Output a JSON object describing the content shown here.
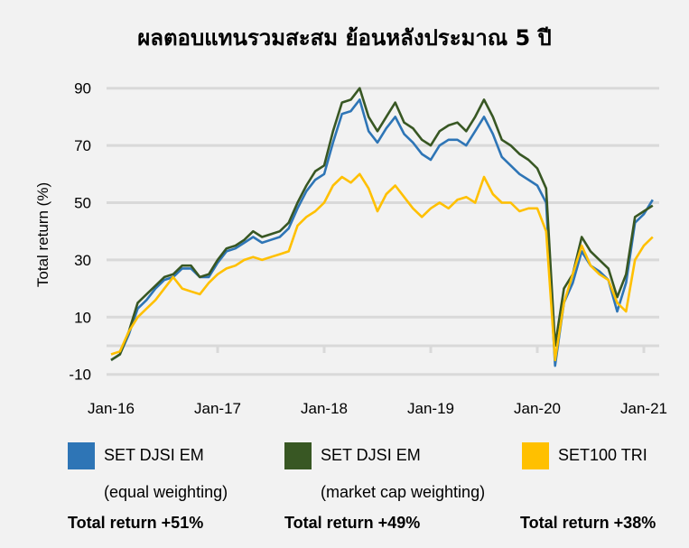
{
  "chart_data": {
    "type": "line",
    "title": "ผลตอบแทนรวมสะสม ย้อนหลังประมาณ 5 ปี",
    "ylabel": "Total return (%)",
    "xlabel": "",
    "ylim": [
      -10,
      90
    ],
    "yticks": [
      "90",
      "70",
      "50",
      "30",
      "10",
      "-10"
    ],
    "ytick_values": [
      90,
      70,
      50,
      30,
      10,
      -10
    ],
    "xticks": [
      "Jan-16",
      "Jan-17",
      "Jan-18",
      "Jan-19",
      "Jan-20",
      "Jan-21"
    ],
    "grid": true,
    "legend_position": "bottom",
    "x": [
      "2016-01",
      "2016-02",
      "2016-03",
      "2016-04",
      "2016-05",
      "2016-06",
      "2016-07",
      "2016-08",
      "2016-09",
      "2016-10",
      "2016-11",
      "2016-12",
      "2017-01",
      "2017-02",
      "2017-03",
      "2017-04",
      "2017-05",
      "2017-06",
      "2017-07",
      "2017-08",
      "2017-09",
      "2017-10",
      "2017-11",
      "2017-12",
      "2018-01",
      "2018-02",
      "2018-03",
      "2018-04",
      "2018-05",
      "2018-06",
      "2018-07",
      "2018-08",
      "2018-09",
      "2018-10",
      "2018-11",
      "2018-12",
      "2019-01",
      "2019-02",
      "2019-03",
      "2019-04",
      "2019-05",
      "2019-06",
      "2019-07",
      "2019-08",
      "2019-09",
      "2019-10",
      "2019-11",
      "2019-12",
      "2020-01",
      "2020-02",
      "2020-03",
      "2020-04",
      "2020-05",
      "2020-06",
      "2020-07",
      "2020-08",
      "2020-09",
      "2020-10",
      "2020-11",
      "2020-12",
      "2021-01",
      "2021-02"
    ],
    "series": [
      {
        "name": "SET DJSI EM (equal weighting)",
        "color": "#2e75b6",
        "total_return": "Total return +51%",
        "values": [
          -5,
          -3,
          4,
          13,
          16,
          20,
          23,
          24,
          27,
          27,
          24,
          24,
          29,
          33,
          34,
          36,
          38,
          36,
          37,
          38,
          41,
          48,
          54,
          58,
          60,
          71,
          81,
          82,
          86,
          75,
          71,
          76,
          80,
          74,
          71,
          67,
          65,
          70,
          72,
          72,
          70,
          75,
          80,
          74,
          66,
          63,
          60,
          58,
          56,
          50,
          -7,
          15,
          22,
          33,
          28,
          26,
          23,
          12,
          22,
          43,
          46,
          51
        ]
      },
      {
        "name": "SET DJSI EM (market cap weighting)",
        "color": "#385723",
        "total_return": "Total return +49%",
        "values": [
          -5,
          -3,
          5,
          15,
          18,
          21,
          24,
          25,
          28,
          28,
          24,
          25,
          30,
          34,
          35,
          37,
          40,
          38,
          39,
          40,
          43,
          50,
          56,
          61,
          63,
          75,
          85,
          86,
          90,
          80,
          75,
          80,
          85,
          78,
          76,
          72,
          70,
          75,
          77,
          78,
          75,
          80,
          86,
          80,
          72,
          70,
          67,
          65,
          62,
          55,
          0,
          20,
          25,
          38,
          33,
          30,
          27,
          17,
          25,
          45,
          47,
          49
        ]
      },
      {
        "name": "SET100 TRI",
        "color": "#ffc000",
        "total_return": "Total return +38%",
        "values": [
          -3,
          -2,
          5,
          10,
          13,
          16,
          20,
          24,
          20,
          19,
          18,
          22,
          25,
          27,
          28,
          30,
          31,
          30,
          31,
          32,
          33,
          42,
          45,
          47,
          50,
          56,
          59,
          57,
          60,
          55,
          47,
          53,
          56,
          52,
          48,
          45,
          48,
          50,
          48,
          51,
          52,
          50,
          59,
          53,
          50,
          50,
          47,
          48,
          48,
          40,
          -5,
          15,
          25,
          35,
          28,
          25,
          23,
          15,
          12,
          30,
          35,
          38
        ]
      }
    ]
  },
  "legend": [
    {
      "line1": "SET DJSI EM",
      "line2": "(equal weighting)",
      "total": "Total return +51%",
      "color": "#2e75b6"
    },
    {
      "line1": "SET DJSI EM",
      "line2": "(market cap weighting)",
      "total": "Total return +49%",
      "color": "#385723"
    },
    {
      "line1": "SET100 TRI",
      "line2": "",
      "total": "Total return +38%",
      "color": "#ffc000"
    }
  ]
}
